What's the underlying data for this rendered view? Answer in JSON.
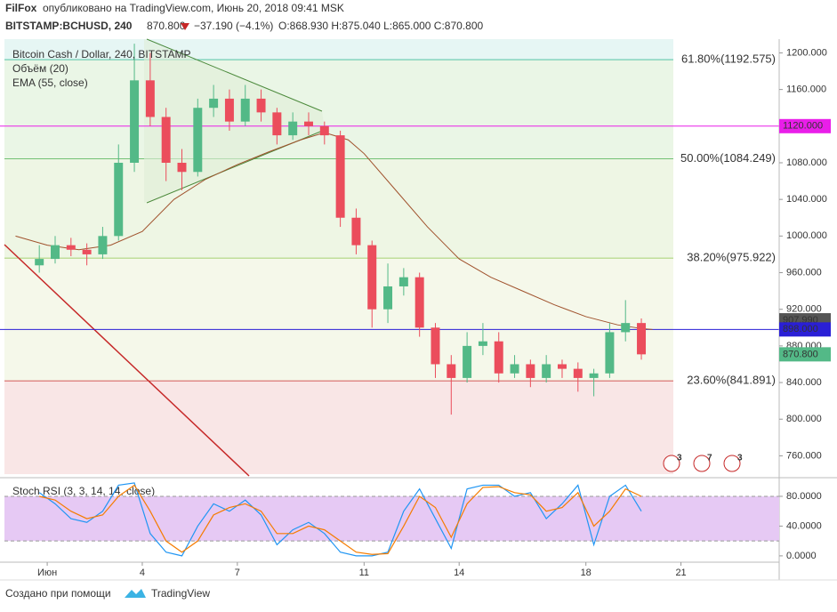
{
  "header": {
    "author": "FilFox",
    "published": "опубликовано на TradingView.com, Июнь 20, 2018 09:41 MSK",
    "symbol": "BITSTAMP:BCHUSD, 240",
    "last": "870.800",
    "change": "−37.190 (−4.1%)",
    "ohlc": "O:868.930 H:875.040 L:865.000 C:870.800"
  },
  "footer": {
    "created": "Создано при помощи",
    "brand": "TradingView"
  },
  "chart_data": {
    "type": "candlestick",
    "legend": [
      "Bitcoin Cash / Dollar, 240, BITSTAMP",
      "Объём (20)",
      "EMA (55, close)"
    ],
    "up_color": "#53b987",
    "down_color": "#eb4d5c",
    "x": [
      0.75,
      1.25,
      1.75,
      2.25,
      2.75,
      3.25,
      3.75,
      4.25,
      4.75,
      5.25,
      5.75,
      6.25,
      6.75,
      7.25,
      7.75,
      8.25,
      8.75,
      9.25,
      9.75,
      10.25,
      10.75,
      11.25,
      11.75,
      12.25,
      12.75,
      13.25,
      13.75,
      14.25,
      14.75,
      15.25,
      15.75,
      16.25,
      16.75,
      17.25,
      17.75,
      18.25,
      18.75,
      19.25,
      19.75
    ],
    "open": [
      968,
      975,
      990,
      985,
      980,
      1000,
      1080,
      1170,
      1130,
      1080,
      1070,
      1140,
      1150,
      1125,
      1150,
      1135,
      1110,
      1125,
      1120,
      1110,
      1020,
      990,
      920,
      945,
      955,
      900,
      860,
      845,
      880,
      885,
      850,
      860,
      845,
      860,
      855,
      845,
      850,
      895,
      905
    ],
    "high": [
      990,
      1000,
      998,
      992,
      1010,
      1100,
      1210,
      1200,
      1140,
      1095,
      1150,
      1165,
      1160,
      1165,
      1160,
      1140,
      1135,
      1135,
      1125,
      1115,
      1030,
      995,
      970,
      965,
      960,
      905,
      870,
      895,
      905,
      895,
      870,
      865,
      870,
      865,
      862,
      855,
      905,
      930,
      910
    ],
    "low": [
      960,
      970,
      978,
      968,
      975,
      995,
      1070,
      1120,
      1060,
      1050,
      1065,
      1130,
      1115,
      1120,
      1125,
      1100,
      1105,
      1110,
      1100,
      1010,
      980,
      900,
      905,
      935,
      890,
      845,
      805,
      840,
      870,
      840,
      845,
      835,
      840,
      845,
      830,
      825,
      845,
      885,
      865
    ],
    "close": [
      975,
      990,
      985,
      980,
      1000,
      1080,
      1170,
      1130,
      1080,
      1070,
      1140,
      1150,
      1125,
      1150,
      1135,
      1110,
      1125,
      1120,
      1110,
      1020,
      990,
      920,
      945,
      955,
      900,
      860,
      845,
      880,
      885,
      850,
      860,
      845,
      860,
      855,
      845,
      850,
      895,
      905,
      870.8
    ],
    "ema": {
      "color": "#a0522d",
      "x": [
        0,
        1,
        2,
        3,
        4,
        5,
        6,
        7,
        8,
        9,
        9.75,
        10.5,
        11,
        12,
        13,
        14,
        15,
        16,
        17,
        18,
        19,
        19.75,
        20.1
      ],
      "values": [
        1000,
        990,
        985,
        990,
        1005,
        1040,
        1062,
        1078,
        1092,
        1105,
        1113,
        1105,
        1090,
        1050,
        1010,
        975,
        955,
        940,
        925,
        912,
        903,
        899,
        898
      ]
    },
    "xlim": [
      -0.35,
      24.1
    ],
    "ylim": [
      740,
      1215
    ],
    "xticks": [
      {
        "value": 1,
        "label": "Июн"
      },
      4,
      7,
      11,
      14,
      18,
      21
    ],
    "yticks": [
      {
        "value": 760,
        "label": "760.000"
      },
      {
        "value": 800,
        "label": "800.000"
      },
      {
        "value": 840,
        "label": "840.000"
      },
      {
        "value": 880,
        "label": "880.000"
      },
      {
        "value": 920,
        "label": "920.000"
      },
      {
        "value": 960,
        "label": "960.000"
      },
      {
        "value": 1000,
        "label": "1000.000"
      },
      {
        "value": 1040,
        "label": "1040.000"
      },
      {
        "value": 1080,
        "label": "1080.000"
      },
      {
        "value": 1120,
        "label": "1120.000"
      },
      {
        "value": 1160,
        "label": "1160.000"
      },
      {
        "value": 1200,
        "label": "1200.000"
      }
    ],
    "fib_levels": [
      {
        "value": 1192.575,
        "label": "61.80%(1192.575)",
        "color": "#3dbb9c",
        "fill": "#e6f6f4"
      },
      {
        "value": 1084.249,
        "label": "50.00%(1084.249)",
        "color": "#4caf50",
        "fill": "#eaf6e6"
      },
      {
        "value": 975.922,
        "label": "38.20%(975.922)",
        "color": "#8bc34a",
        "fill": "#eef6e4"
      },
      {
        "value": 841.891,
        "label": "23.60%(841.891)",
        "color": "#c62828",
        "fill": "#f5f8ea"
      }
    ],
    "fib_below_fill": "#f9e6e6",
    "price_tags": [
      {
        "value": 1120,
        "label": "1120.000",
        "color": "#e91ee9",
        "line": true
      },
      {
        "value": 907.99,
        "label": "907.990",
        "color": "#555555",
        "line": false
      },
      {
        "value": 898,
        "label": "898.000",
        "color": "#2a1fd6",
        "line": true
      },
      {
        "value": 870.8,
        "label": "870.800",
        "color": "#53b987",
        "line": false
      }
    ],
    "events": [
      "3",
      "7",
      "3"
    ],
    "stoch": {
      "title": "Stoch RSI (3, 3, 14, 14, close)",
      "ylim": [
        -8.5,
        101.5
      ],
      "yticks": [
        {
          "value": 0,
          "label": "0.0000"
        },
        {
          "value": 40,
          "label": "40.0000"
        },
        {
          "value": 80,
          "label": "80.0000"
        }
      ],
      "band": [
        20,
        80
      ],
      "band_color": "#e6c9f4",
      "series": [
        {
          "color": "#2196f3",
          "values": [
            85,
            70,
            50,
            45,
            60,
            95,
            98,
            30,
            5,
            0,
            40,
            70,
            60,
            75,
            55,
            15,
            35,
            45,
            30,
            5,
            0,
            0,
            5,
            60,
            90,
            50,
            10,
            90,
            95,
            95,
            80,
            85,
            50,
            70,
            95,
            15,
            80,
            95,
            60
          ]
        },
        {
          "color": "#f57c00",
          "values": [
            80,
            75,
            60,
            50,
            55,
            80,
            95,
            60,
            20,
            5,
            20,
            55,
            65,
            70,
            60,
            30,
            30,
            40,
            35,
            20,
            5,
            2,
            3,
            40,
            80,
            65,
            25,
            70,
            92,
            93,
            85,
            82,
            60,
            65,
            85,
            40,
            60,
            90,
            80
          ]
        }
      ]
    }
  }
}
